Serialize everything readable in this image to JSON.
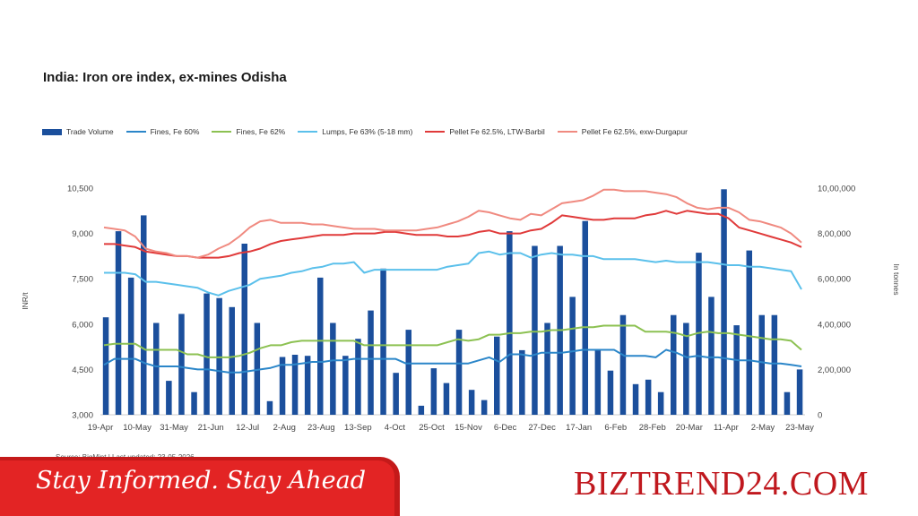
{
  "chart_data": {
    "type": "bar+line",
    "title": "India: Iron ore index, ex-mines Odisha",
    "ylabel_left": "INR/t",
    "ylabel_right": "In tonnes",
    "ylim_left": [
      3000,
      10500
    ],
    "ylim_right": [
      0,
      1000000
    ],
    "yticks_left": [
      "3,000",
      "4,500",
      "6,000",
      "7,500",
      "9,000",
      "10,500"
    ],
    "yticks_right": [
      "0",
      "2,00,000",
      "4,00,000",
      "6,00,000",
      "8,00,000",
      "10,00,000"
    ],
    "xticks": [
      "19-Apr",
      "10-May",
      "31-May",
      "21-Jun",
      "12-Jul",
      "2-Aug",
      "23-Aug",
      "13-Sep",
      "4-Oct",
      "25-Oct",
      "15-Nov",
      "6-Dec",
      "27-Dec",
      "17-Jan",
      "6-Feb",
      "28-Feb",
      "20-Mar",
      "11-Apr",
      "2-May",
      "23-May"
    ],
    "grid": false,
    "legend_position": "top",
    "series": [
      {
        "name": "Trade Volume",
        "type": "bar",
        "axis": "right",
        "color": "#1b4f9c",
        "values": [
          430000,
          810000,
          605000,
          880000,
          405000,
          150000,
          445000,
          100000,
          535000,
          515000,
          475000,
          755000,
          405000,
          60000,
          255000,
          265000,
          260000,
          605000,
          405000,
          260000,
          335000,
          460000,
          645000,
          185000,
          375000,
          40000,
          205000,
          140000,
          375000,
          110000,
          65000,
          345000,
          810000,
          285000,
          745000,
          405000,
          745000,
          520000,
          855000,
          285000,
          195000,
          440000,
          135000,
          155000,
          100000,
          440000,
          405000,
          715000,
          520000,
          995000,
          395000,
          725000,
          440000,
          440000,
          100000,
          200000
        ]
      },
      {
        "name": "Fines, Fe 60%",
        "type": "line",
        "axis": "left",
        "color": "#2b86c9",
        "values": [
          4650,
          4850,
          4850,
          4850,
          4700,
          4600,
          4600,
          4600,
          4550,
          4500,
          4500,
          4450,
          4400,
          4400,
          4450,
          4500,
          4550,
          4650,
          4650,
          4700,
          4750,
          4750,
          4800,
          4800,
          4850,
          4850,
          4850,
          4850,
          4850,
          4700,
          4700,
          4700,
          4700,
          4700,
          4700,
          4700,
          4800,
          4900,
          4750,
          5000,
          5000,
          4950,
          5050,
          5050,
          5050,
          5100,
          5150,
          5150,
          5150,
          5150,
          4950,
          4950,
          4950,
          4900,
          5150,
          5050,
          4900,
          4950,
          4900,
          4900,
          4850,
          4800,
          4800,
          4750,
          4700,
          4700,
          4650,
          4600
        ]
      },
      {
        "name": "Fines, Fe 62%",
        "type": "line",
        "axis": "left",
        "color": "#8cc152",
        "values": [
          5300,
          5350,
          5350,
          5350,
          5150,
          5150,
          5150,
          5150,
          5000,
          5000,
          4900,
          4900,
          4900,
          4950,
          5050,
          5200,
          5300,
          5300,
          5400,
          5450,
          5450,
          5450,
          5450,
          5450,
          5450,
          5300,
          5300,
          5300,
          5300,
          5300,
          5300,
          5300,
          5300,
          5400,
          5500,
          5450,
          5500,
          5650,
          5650,
          5700,
          5700,
          5750,
          5750,
          5800,
          5800,
          5850,
          5900,
          5900,
          5950,
          5950,
          5950,
          5950,
          5750,
          5750,
          5750,
          5700,
          5600,
          5700,
          5750,
          5700,
          5700,
          5650,
          5600,
          5550,
          5500,
          5500,
          5450,
          5150
        ]
      },
      {
        "name": "Lumps, Fe 63% (5-18 mm)",
        "type": "line",
        "axis": "left",
        "color": "#5bc0eb",
        "values": [
          7700,
          7700,
          7700,
          7650,
          7400,
          7400,
          7350,
          7300,
          7250,
          7200,
          7050,
          6950,
          7100,
          7200,
          7300,
          7500,
          7550,
          7600,
          7700,
          7750,
          7850,
          7900,
          8000,
          8000,
          8050,
          7700,
          7800,
          7800,
          7800,
          7800,
          7800,
          7800,
          7800,
          7900,
          7950,
          8000,
          8350,
          8400,
          8300,
          8350,
          8350,
          8200,
          8300,
          8350,
          8300,
          8300,
          8250,
          8250,
          8150,
          8150,
          8150,
          8150,
          8100,
          8050,
          8100,
          8050,
          8050,
          8050,
          8050,
          8000,
          7950,
          7950,
          7900,
          7900,
          7850,
          7800,
          7750,
          7150
        ]
      },
      {
        "name": "Pellet Fe 62.5%, LTW-Barbil",
        "type": "line",
        "axis": "left",
        "color": "#e03a3a",
        "values": [
          8650,
          8650,
          8600,
          8550,
          8400,
          8350,
          8300,
          8250,
          8250,
          8200,
          8200,
          8200,
          8250,
          8350,
          8400,
          8500,
          8650,
          8750,
          8800,
          8850,
          8900,
          8950,
          8950,
          8950,
          9000,
          9000,
          9000,
          9050,
          9050,
          9000,
          8950,
          8950,
          8950,
          8900,
          8900,
          8950,
          9050,
          9100,
          9000,
          9000,
          9000,
          9100,
          9150,
          9350,
          9600,
          9550,
          9500,
          9450,
          9450,
          9500,
          9500,
          9500,
          9600,
          9650,
          9750,
          9650,
          9750,
          9700,
          9650,
          9650,
          9500,
          9200,
          9100,
          9000,
          8900,
          8800,
          8700,
          8550
        ]
      },
      {
        "name": "Pellet Fe  62.5%, exw-Durgapur",
        "type": "line",
        "axis": "left",
        "color": "#f08a80",
        "values": [
          9200,
          9150,
          9100,
          8900,
          8500,
          8400,
          8350,
          8250,
          8250,
          8200,
          8300,
          8500,
          8650,
          8900,
          9200,
          9400,
          9450,
          9350,
          9350,
          9350,
          9300,
          9300,
          9250,
          9200,
          9150,
          9150,
          9150,
          9100,
          9100,
          9100,
          9100,
          9150,
          9200,
          9300,
          9400,
          9550,
          9750,
          9700,
          9600,
          9500,
          9450,
          9650,
          9600,
          9800,
          10000,
          10050,
          10100,
          10250,
          10450,
          10450,
          10400,
          10400,
          10400,
          10350,
          10300,
          10200,
          10000,
          9850,
          9800,
          9850,
          9850,
          9700,
          9450,
          9400,
          9300,
          9200,
          9000,
          8700
        ]
      }
    ]
  },
  "source": "Source: BigMint | Last updated: 23-05-2026",
  "banner": {
    "tagline": "Stay Informed. Stay Ahead",
    "brand": "BIZTREND24.COM"
  }
}
